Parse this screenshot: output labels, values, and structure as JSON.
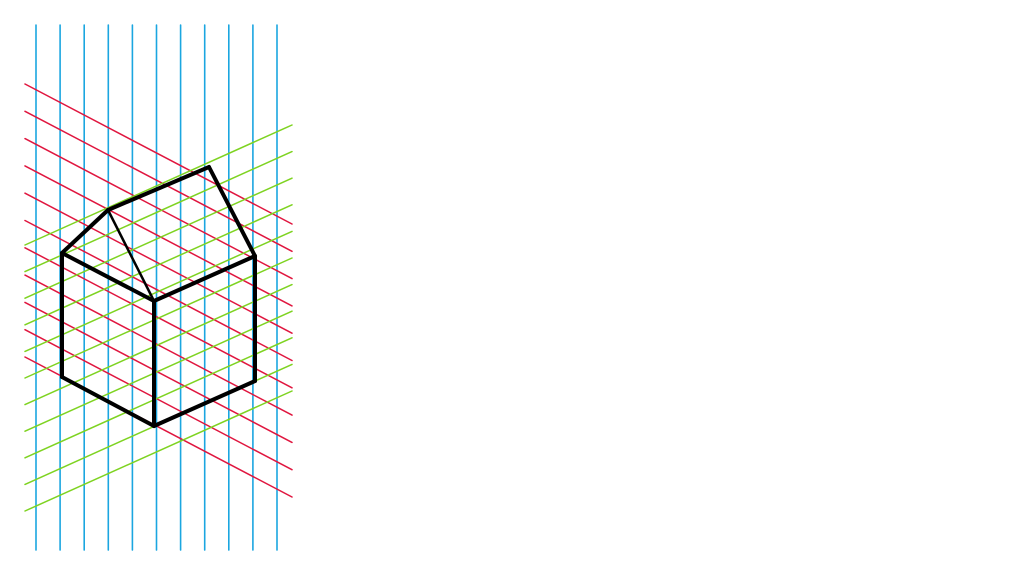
{
  "diagram": {
    "type": "isometric-grid-house-sketch",
    "colors": {
      "vertical_grid": "#1ba6e0",
      "descending_grid": "#e0163f",
      "ascending_grid": "#7ed321",
      "outline": "#000000",
      "background": "#ffffff"
    },
    "grid_counts": {
      "vertical": 11,
      "descending": 11,
      "ascending": 11
    }
  }
}
